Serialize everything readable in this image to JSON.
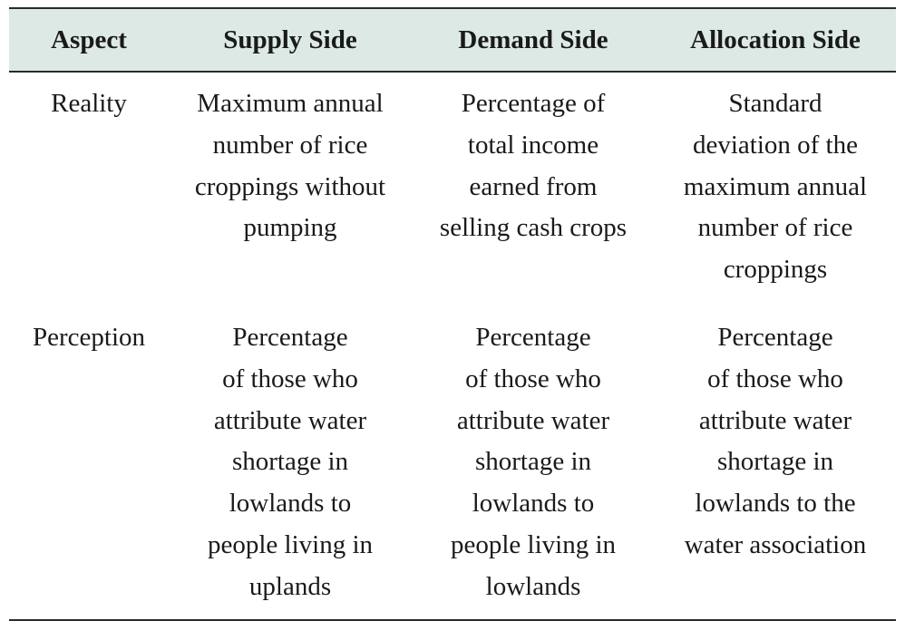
{
  "table": {
    "headers": [
      "Aspect",
      "Supply Side",
      "Demand Side",
      "Allocation Side"
    ],
    "rows": [
      {
        "aspect": "Reality",
        "supply": [
          "Maximum annual",
          "number of rice",
          "croppings without",
          "pumping"
        ],
        "demand": [
          "Percentage of",
          "total income",
          "earned from",
          "selling cash crops"
        ],
        "allocation": [
          "Standard",
          "deviation of the",
          "maximum annual",
          "number of rice",
          "croppings"
        ]
      },
      {
        "aspect": "Perception",
        "supply": [
          "Percentage",
          "of those who",
          "attribute water",
          "shortage in",
          "lowlands to",
          "people living in",
          "uplands"
        ],
        "demand": [
          "Percentage",
          "of those who",
          "attribute water",
          "shortage in",
          "lowlands to",
          "people living in",
          "lowlands"
        ],
        "allocation": [
          "Percentage",
          "of those who",
          "attribute water",
          "shortage in",
          "lowlands to the",
          "water association"
        ]
      }
    ]
  }
}
